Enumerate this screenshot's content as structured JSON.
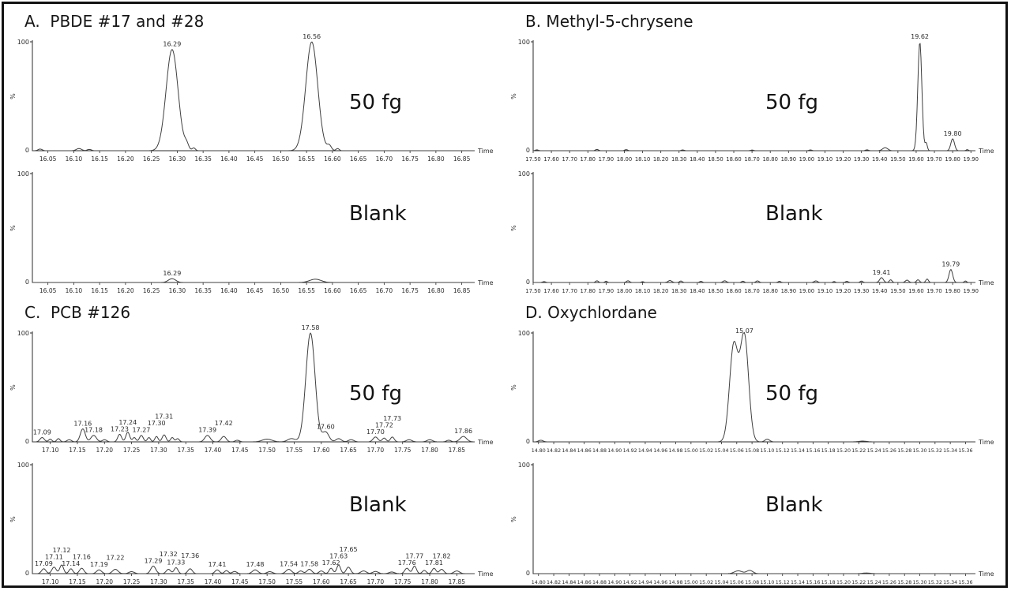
{
  "style": {
    "background": "#ffffff",
    "border_color": "#121212",
    "axis_color": "#2b2b2b",
    "trace_color": "#3f3f3f",
    "text_color": "#2b2b2b"
  },
  "chart_data": [
    {
      "id": "A",
      "title": "A.  PBDE #17 and #28",
      "type": "line",
      "xlabel": "Time",
      "ylabel": "%",
      "ylim": [
        0,
        100
      ],
      "x_range": [
        16.02,
        16.875
      ],
      "x_ticks": [
        "16.05",
        "16.10",
        "16.15",
        "16.20",
        "16.25",
        "16.30",
        "16.35",
        "16.40",
        "16.45",
        "16.50",
        "16.55",
        "16.60",
        "16.65",
        "16.70",
        "16.75",
        "16.80",
        "16.85"
      ],
      "plots": [
        {
          "annotation": "50 fg",
          "peaks": [
            [
              16.035,
              1.5,
              0.004,
              null
            ],
            [
              16.11,
              2,
              0.005,
              null
            ],
            [
              16.13,
              1.2,
              0.004,
              null
            ],
            [
              16.29,
              93,
              0.0115,
              "16.29"
            ],
            [
              16.318,
              5,
              0.004,
              null
            ],
            [
              16.332,
              2.5,
              0.003,
              null
            ],
            [
              16.56,
              100,
              0.0115,
              "16.56"
            ],
            [
              16.594,
              4.5,
              0.004,
              null
            ],
            [
              16.61,
              2,
              0.003,
              null
            ]
          ]
        },
        {
          "annotation": "Blank",
          "peaks": [
            [
              16.29,
              3.5,
              0.007,
              "16.29"
            ],
            [
              16.567,
              3,
              0.011,
              null
            ]
          ]
        }
      ]
    },
    {
      "id": "B",
      "title": "B. Methyl-5-chrysene",
      "type": "line",
      "xlabel": "Time",
      "ylabel": "%",
      "ylim": [
        0,
        100
      ],
      "x_range": [
        17.5,
        19.925
      ],
      "x_ticks": [
        "17.50",
        "17.60",
        "17.70",
        "17.80",
        "17.90",
        "18.00",
        "18.10",
        "18.20",
        "18.30",
        "18.40",
        "18.50",
        "18.60",
        "18.70",
        "18.80",
        "18.90",
        "19.00",
        "19.10",
        "19.20",
        "19.30",
        "19.40",
        "19.50",
        "19.60",
        "19.70",
        "19.80",
        "19.90"
      ],
      "plots": [
        {
          "annotation": "50 fg",
          "peaks": [
            [
              17.52,
              0.8,
              0.008,
              null
            ],
            [
              17.85,
              1.2,
              0.008,
              null
            ],
            [
              18.01,
              1.0,
              0.008,
              null
            ],
            [
              18.32,
              0.7,
              0.008,
              null
            ],
            [
              18.7,
              0.6,
              0.008,
              null
            ],
            [
              19.02,
              0.7,
              0.008,
              null
            ],
            [
              19.33,
              0.8,
              0.008,
              null
            ],
            [
              19.43,
              2.8,
              0.014,
              null
            ],
            [
              19.62,
              100,
              0.011,
              "19.62"
            ],
            [
              19.655,
              7,
              0.006,
              null
            ],
            [
              19.8,
              11,
              0.01,
              "19.80"
            ],
            [
              19.88,
              1,
              0.006,
              null
            ]
          ]
        },
        {
          "annotation": "Blank",
          "peaks": [
            [
              17.56,
              0.8,
              0.008,
              null
            ],
            [
              17.85,
              1.6,
              0.007,
              null
            ],
            [
              17.9,
              1.2,
              0.006,
              null
            ],
            [
              18.02,
              1.6,
              0.008,
              null
            ],
            [
              18.1,
              0.8,
              0.006,
              null
            ],
            [
              18.25,
              1.8,
              0.01,
              null
            ],
            [
              18.31,
              1.4,
              0.007,
              null
            ],
            [
              18.42,
              1.1,
              0.007,
              null
            ],
            [
              18.55,
              1.6,
              0.009,
              null
            ],
            [
              18.65,
              1.2,
              0.007,
              null
            ],
            [
              18.73,
              1.5,
              0.008,
              null
            ],
            [
              18.85,
              1.1,
              0.007,
              null
            ],
            [
              19.05,
              1.5,
              0.009,
              null
            ],
            [
              19.15,
              0.9,
              0.006,
              null
            ],
            [
              19.22,
              1.1,
              0.007,
              null
            ],
            [
              19.3,
              1.3,
              0.007,
              null
            ],
            [
              19.41,
              4.5,
              0.01,
              "19.41"
            ],
            [
              19.46,
              2.5,
              0.007,
              null
            ],
            [
              19.55,
              2.2,
              0.009,
              null
            ],
            [
              19.61,
              2.5,
              0.008,
              null
            ],
            [
              19.66,
              3.2,
              0.007,
              null
            ],
            [
              19.79,
              12,
              0.01,
              "19.79"
            ],
            [
              19.87,
              1.4,
              0.006,
              null
            ]
          ]
        }
      ]
    },
    {
      "id": "C",
      "title": "C.  PCB #126",
      "type": "line",
      "xlabel": "Time",
      "ylabel": "%",
      "ylim": [
        0,
        100
      ],
      "x_range": [
        17.067,
        17.883
      ],
      "x_ticks": [
        "17.10",
        "17.15",
        "17.20",
        "17.25",
        "17.30",
        "17.35",
        "17.40",
        "17.45",
        "17.50",
        "17.55",
        "17.60",
        "17.65",
        "17.70",
        "17.75",
        "17.80",
        "17.85"
      ],
      "plots": [
        {
          "annotation": "50 fg",
          "peaks": [
            [
              17.085,
              4,
              0.004,
              "17.09"
            ],
            [
              17.1,
              2.5,
              0.003,
              null
            ],
            [
              17.115,
              3,
              0.003,
              null
            ],
            [
              17.135,
              2,
              0.004,
              null
            ],
            [
              17.16,
              12,
              0.0045,
              "17.16"
            ],
            [
              17.18,
              6,
              0.005,
              "17.18"
            ],
            [
              17.2,
              2,
              0.004,
              null
            ],
            [
              17.228,
              7,
              0.0035,
              "17.23"
            ],
            [
              17.243,
              9,
              0.0035,
              "17.24"
            ],
            [
              17.255,
              4,
              0.003,
              null
            ],
            [
              17.268,
              6,
              0.0035,
              "17.27"
            ],
            [
              17.282,
              4,
              0.003,
              null
            ],
            [
              17.296,
              5,
              0.003,
              "17.30"
            ],
            [
              17.31,
              6.5,
              0.0035,
              "17.31"
            ],
            [
              17.325,
              4,
              0.003,
              null
            ],
            [
              17.335,
              3,
              0.003,
              null
            ],
            [
              17.39,
              6,
              0.005,
              "17.39"
            ],
            [
              17.42,
              5,
              0.0045,
              "17.42"
            ],
            [
              17.445,
              1.5,
              0.004,
              null
            ],
            [
              17.5,
              2.5,
              0.009,
              null
            ],
            [
              17.545,
              3,
              0.007,
              null
            ],
            [
              17.58,
              100,
              0.0085,
              "17.58"
            ],
            [
              17.608,
              9,
              0.006,
              "17.60"
            ],
            [
              17.632,
              3,
              0.005,
              null
            ],
            [
              17.655,
              2,
              0.005,
              null
            ],
            [
              17.7,
              4.5,
              0.0045,
              "17.70"
            ],
            [
              17.716,
              3.5,
              0.0035,
              "17.72"
            ],
            [
              17.731,
              4.5,
              0.0035,
              "17.73"
            ],
            [
              17.762,
              2,
              0.005,
              null
            ],
            [
              17.8,
              2,
              0.005,
              null
            ],
            [
              17.835,
              1.5,
              0.004,
              null
            ],
            [
              17.862,
              5,
              0.006,
              "17.86"
            ]
          ]
        },
        {
          "annotation": "Blank",
          "peaks": [
            [
              17.088,
              4.5,
              0.004,
              "17.09"
            ],
            [
              17.107,
              6,
              0.004,
              "17.11"
            ],
            [
              17.121,
              8,
              0.0035,
              "17.12"
            ],
            [
              17.138,
              4.5,
              0.0035,
              "17.14"
            ],
            [
              17.158,
              5,
              0.004,
              "17.16"
            ],
            [
              17.19,
              3.5,
              0.0045,
              "17.19"
            ],
            [
              17.22,
              4,
              0.005,
              "17.22"
            ],
            [
              17.25,
              1.8,
              0.005,
              null
            ],
            [
              17.29,
              7,
              0.0045,
              "17.29"
            ],
            [
              17.318,
              4,
              0.004,
              "17.32"
            ],
            [
              17.332,
              5.5,
              0.0035,
              "17.33"
            ],
            [
              17.358,
              4.5,
              0.004,
              "17.36"
            ],
            [
              17.408,
              3.5,
              0.004,
              "17.41"
            ],
            [
              17.425,
              2.8,
              0.0035,
              null
            ],
            [
              17.44,
              2,
              0.004,
              null
            ],
            [
              17.478,
              3.5,
              0.005,
              "17.48"
            ],
            [
              17.505,
              1.8,
              0.005,
              null
            ],
            [
              17.54,
              4,
              0.005,
              "17.54"
            ],
            [
              17.562,
              2.5,
              0.004,
              null
            ],
            [
              17.578,
              4,
              0.0045,
              "17.58"
            ],
            [
              17.6,
              2.5,
              0.004,
              null
            ],
            [
              17.618,
              5,
              0.0035,
              "17.62"
            ],
            [
              17.632,
              8,
              0.0035,
              "17.63"
            ],
            [
              17.65,
              6,
              0.004,
              "17.65"
            ],
            [
              17.678,
              2.5,
              0.005,
              null
            ],
            [
              17.7,
              2,
              0.005,
              null
            ],
            [
              17.73,
              1.5,
              0.005,
              null
            ],
            [
              17.758,
              5,
              0.004,
              "17.76"
            ],
            [
              17.772,
              7,
              0.0035,
              "17.77"
            ],
            [
              17.79,
              3,
              0.0035,
              null
            ],
            [
              17.808,
              5,
              0.0035,
              "17.81"
            ],
            [
              17.822,
              4,
              0.004,
              "17.82"
            ],
            [
              17.85,
              2.5,
              0.005,
              null
            ]
          ]
        }
      ]
    },
    {
      "id": "D",
      "title": "D. Oxychlordane",
      "type": "line",
      "xlabel": "Time",
      "ylabel": "%",
      "ylim": [
        0,
        100
      ],
      "x_range": [
        14.793,
        15.373
      ],
      "x_ticks": [
        "14.80",
        "14.82",
        "14.84",
        "14.86",
        "14.88",
        "14.90",
        "14.92",
        "14.94",
        "14.96",
        "14.98",
        "15.00",
        "15.02",
        "15.04",
        "15.06",
        "15.08",
        "15.10",
        "15.12",
        "15.14",
        "15.16",
        "15.18",
        "15.20",
        "15.22",
        "15.24",
        "15.26",
        "15.28",
        "15.30",
        "15.32",
        "15.34",
        "15.36"
      ],
      "plots": [
        {
          "annotation": "50 fg",
          "peaks": [
            [
              14.803,
              1.5,
              0.003,
              null
            ],
            [
              15.056,
              88,
              0.0055,
              null
            ],
            [
              15.07,
              97,
              0.0055,
              "15.07"
            ],
            [
              15.1,
              2.5,
              0.003,
              null
            ],
            [
              15.225,
              0.7,
              0.005,
              null
            ]
          ]
        },
        {
          "annotation": "Blank",
          "peaks": [
            [
              15.062,
              2.6,
              0.005,
              null
            ],
            [
              15.077,
              3.0,
              0.004,
              null
            ],
            [
              15.23,
              0.6,
              0.005,
              null
            ]
          ]
        }
      ]
    }
  ]
}
